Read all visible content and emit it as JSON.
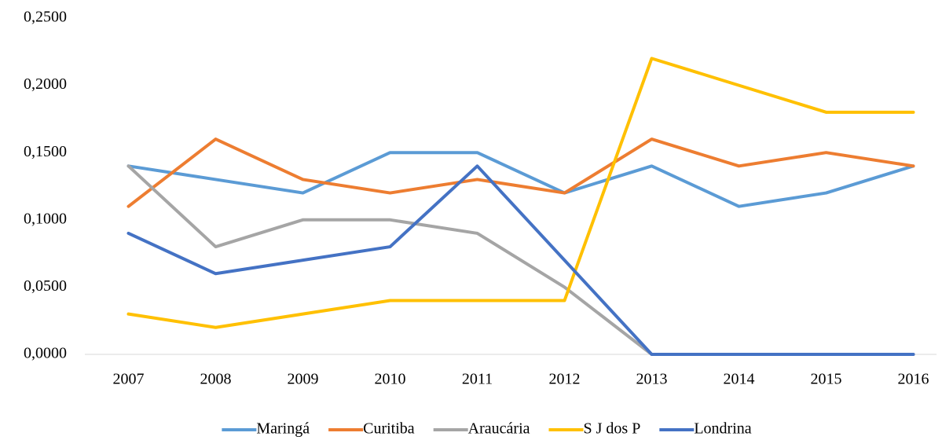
{
  "chart_data": {
    "type": "line",
    "categories": [
      "2007",
      "2008",
      "2009",
      "2010",
      "2011",
      "2012",
      "2013",
      "2014",
      "2015",
      "2016"
    ],
    "series": [
      {
        "name": "Maringá",
        "color": "#5b9bd5",
        "values": [
          0.14,
          0.13,
          0.12,
          0.15,
          0.15,
          0.12,
          0.14,
          0.11,
          0.12,
          0.14
        ]
      },
      {
        "name": "Curitiba",
        "color": "#ed7d31",
        "values": [
          0.11,
          0.16,
          0.13,
          0.12,
          0.13,
          0.12,
          0.16,
          0.14,
          0.15,
          0.14
        ]
      },
      {
        "name": "Araucária",
        "color": "#a5a5a5",
        "values": [
          0.14,
          0.08,
          0.1,
          0.1,
          0.09,
          0.05,
          0,
          0,
          0,
          0
        ]
      },
      {
        "name": "S J dos P",
        "color": "#ffc000",
        "values": [
          0.03,
          0.02,
          0.03,
          0.04,
          0.04,
          0.04,
          0.22,
          0.2,
          0.18,
          0.18
        ]
      },
      {
        "name": "Londrina",
        "color": "#4472c4",
        "values": [
          0.09,
          0.06,
          0.07,
          0.08,
          0.14,
          0.07,
          0,
          0,
          0,
          0
        ]
      }
    ],
    "ylim": [
      0,
      0.25
    ],
    "yticks": [
      {
        "value": 0,
        "label": "0,0000"
      },
      {
        "value": 0.05,
        "label": "0,0500"
      },
      {
        "value": 0.1,
        "label": "0,1000"
      },
      {
        "value": 0.15,
        "label": "0,1500"
      },
      {
        "value": 0.2,
        "label": "0,2000"
      },
      {
        "value": 0.25,
        "label": "0,2500"
      }
    ],
    "grid": false,
    "legend": "bottom"
  }
}
